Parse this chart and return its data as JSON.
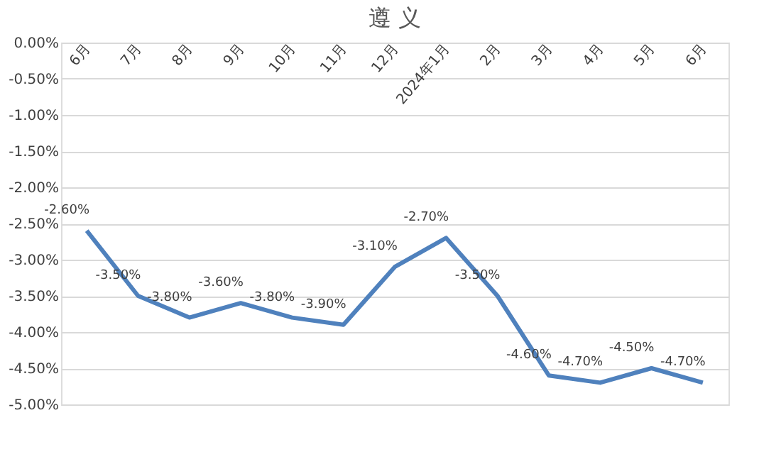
{
  "chart_data": {
    "type": "line",
    "title": "遵 义",
    "categories": [
      "6月",
      "7月",
      "8月",
      "9月",
      "10月",
      "11月",
      "12月",
      "2024年1月",
      "2月",
      "3月",
      "4月",
      "5月",
      "6月"
    ],
    "series": [
      {
        "color": "#4f81bd",
        "values": [
          -2.6,
          -3.5,
          -3.8,
          -3.6,
          -3.8,
          -3.9,
          -3.1,
          -2.7,
          -3.5,
          -4.6,
          -4.7,
          -4.5,
          -4.7
        ],
        "value_labels": [
          "-2.60%",
          "-3.50%",
          "-3.80%",
          "-3.60%",
          "-3.80%",
          "-3.90%",
          "-3.10%",
          "-2.70%",
          "-3.50%",
          "-4.60%",
          "-4.70%",
          "-4.50%",
          "-4.70%"
        ]
      }
    ],
    "ylim": [
      -5,
      0
    ],
    "yticks": [
      {
        "value": 0,
        "label": "0.00%"
      },
      {
        "value": -0.5,
        "label": "-0.50%"
      },
      {
        "value": -1,
        "label": "-1.00%"
      },
      {
        "value": -1.5,
        "label": "-1.50%"
      },
      {
        "value": -2,
        "label": "-2.00%"
      },
      {
        "value": -2.5,
        "label": "-2.50%"
      },
      {
        "value": -3,
        "label": "-3.00%"
      },
      {
        "value": -3.5,
        "label": "-3.50%"
      },
      {
        "value": -4,
        "label": "-4.00%"
      },
      {
        "value": -4.5,
        "label": "-4.50%"
      },
      {
        "value": -5,
        "label": "-5.00%"
      }
    ],
    "grid": "y",
    "marker": "none",
    "line_style": "solid"
  }
}
